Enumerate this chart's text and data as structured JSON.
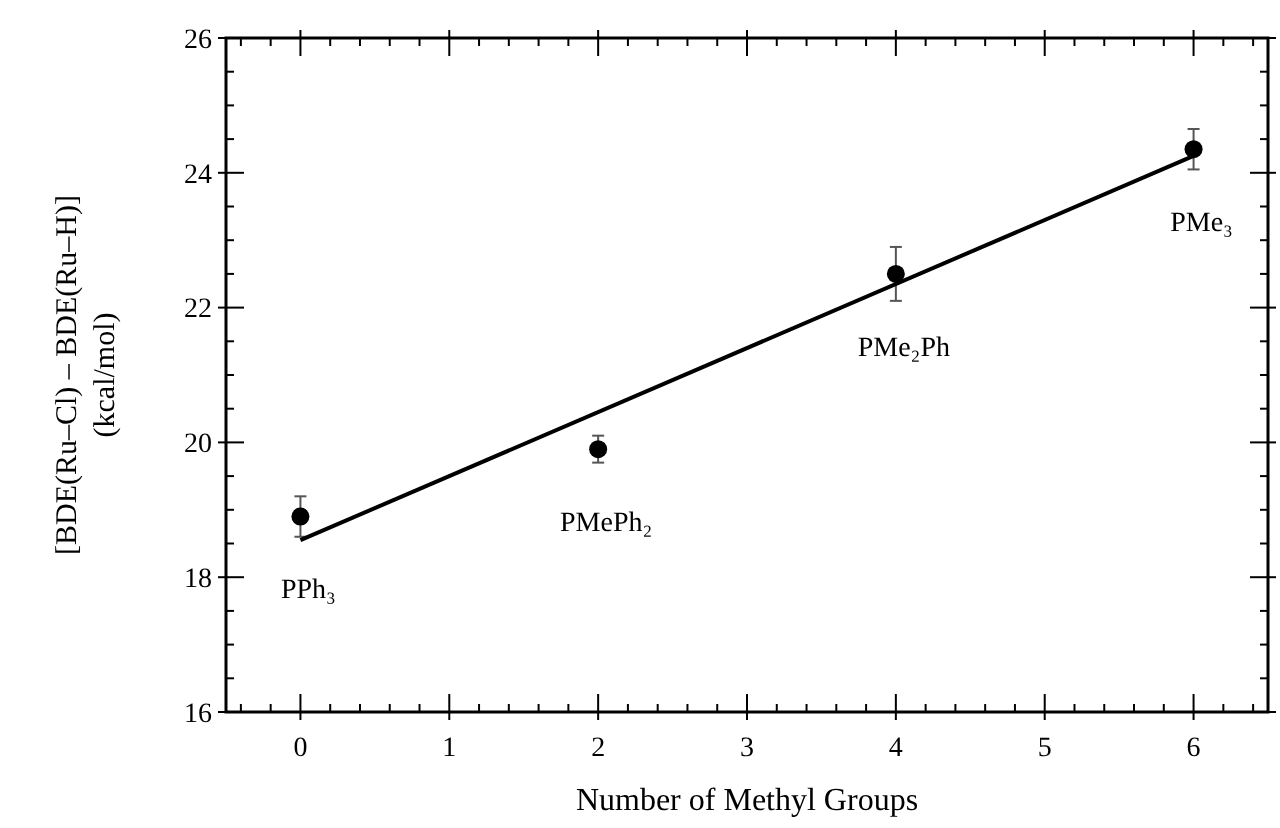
{
  "chart_data": {
    "type": "scatter",
    "xlabel": "Number of Methyl Groups",
    "ylabel": "[BDE(Ru–Cl) – BDE(Ru–H)]\n(kcal/mol)",
    "xlim": [
      -0.5,
      6.5
    ],
    "ylim": [
      16,
      26
    ],
    "xticks": [
      {
        "value": -0.4,
        "label": null
      },
      {
        "value": -0.2,
        "label": null
      },
      0,
      {
        "value": 0.2,
        "label": null
      },
      {
        "value": 0.4,
        "label": null
      },
      {
        "value": 0.6,
        "label": null
      },
      {
        "value": 0.8,
        "label": null
      },
      1,
      {
        "value": 1.2,
        "label": null
      },
      {
        "value": 1.4,
        "label": null
      },
      {
        "value": 1.6,
        "label": null
      },
      {
        "value": 1.8,
        "label": null
      },
      2,
      {
        "value": 2.2,
        "label": null
      },
      {
        "value": 2.4,
        "label": null
      },
      {
        "value": 2.6,
        "label": null
      },
      {
        "value": 2.8,
        "label": null
      },
      3,
      {
        "value": 3.2,
        "label": null
      },
      {
        "value": 3.4,
        "label": null
      },
      {
        "value": 3.6,
        "label": null
      },
      {
        "value": 3.8,
        "label": null
      },
      4,
      {
        "value": 4.2,
        "label": null
      },
      {
        "value": 4.4,
        "label": null
      },
      {
        "value": 4.6,
        "label": null
      },
      {
        "value": 4.8,
        "label": null
      },
      5,
      {
        "value": 5.2,
        "label": null
      },
      {
        "value": 5.4,
        "label": null
      },
      {
        "value": 5.6,
        "label": null
      },
      {
        "value": 5.8,
        "label": null
      },
      6,
      {
        "value": 6.2,
        "label": null
      },
      {
        "value": 6.4,
        "label": null
      }
    ],
    "yticks": [
      16,
      {
        "value": 16.5,
        "label": null
      },
      {
        "value": 17,
        "label": null
      },
      {
        "value": 17.5,
        "label": null
      },
      18,
      {
        "value": 18.5,
        "label": null
      },
      {
        "value": 19,
        "label": null
      },
      {
        "value": 19.5,
        "label": null
      },
      20,
      {
        "value": 20.5,
        "label": null
      },
      {
        "value": 21,
        "label": null
      },
      {
        "value": 21.5,
        "label": null
      },
      22,
      {
        "value": 22.5,
        "label": null
      },
      {
        "value": 23,
        "label": null
      },
      {
        "value": 23.5,
        "label": null
      },
      24,
      {
        "value": 24.5,
        "label": null
      },
      {
        "value": 25,
        "label": null
      },
      {
        "value": 25.5,
        "label": null
      },
      26
    ],
    "grid": false,
    "series": [
      {
        "color": "#000000",
        "marker": "circle",
        "x": [
          0,
          2,
          4,
          6
        ],
        "values": [
          18.9,
          19.9,
          22.5,
          24.35
        ],
        "errors": [
          0.3,
          0.2,
          0.4,
          0.3
        ]
      },
      {
        "type": "line",
        "color": "#000000",
        "line_style": "solid",
        "marker": "none",
        "x": [
          0,
          6
        ],
        "values": [
          18.55,
          24.25
        ]
      }
    ],
    "annotations": [
      {
        "text": "PPh₃",
        "x": 0,
        "y": 18.9
      },
      {
        "text": "PMePh₂",
        "x": 2,
        "y": 19.9
      },
      {
        "text": "PMe₂Ph",
        "x": 4,
        "y": 22.5
      },
      {
        "text": "PMe₃",
        "x": 6,
        "y": 24.35
      }
    ]
  }
}
